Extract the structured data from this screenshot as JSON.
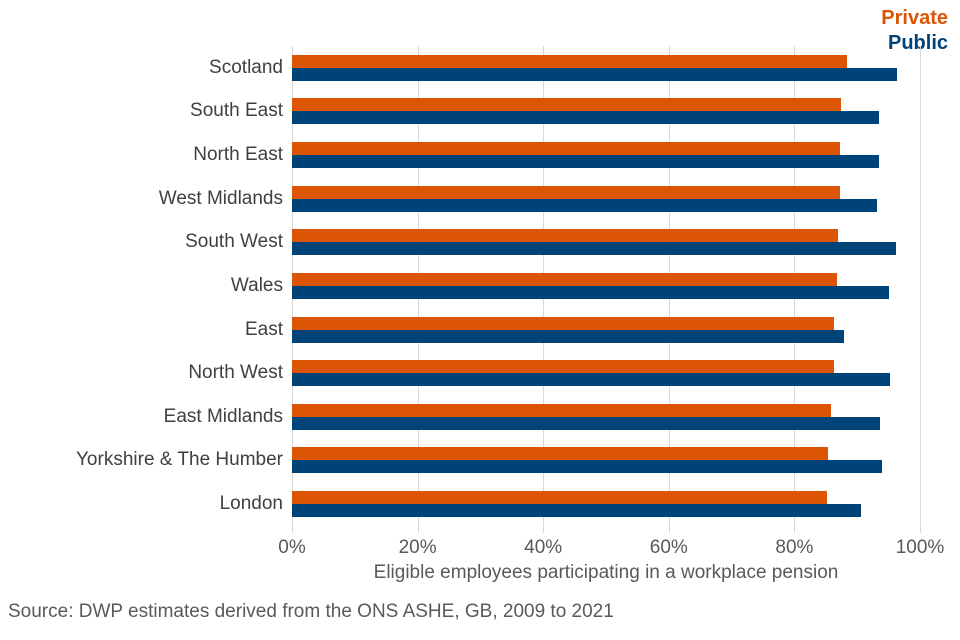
{
  "legend": {
    "private_label": "Private",
    "public_label": "Public"
  },
  "source": "Source: DWP estimates derived from the ONS ASHE, GB, 2009 to 2021",
  "colors": {
    "private": "#DC5405",
    "public": "#004379",
    "gridline": "#D9D9D9",
    "category_text": "#404040",
    "axis_text": "#595959"
  },
  "chart_data": {
    "type": "bar",
    "orientation": "horizontal",
    "title": "",
    "xlabel": "Eligible employees participating in a workplace pension",
    "ylabel": "",
    "xlim": [
      0,
      100
    ],
    "x_ticks": [
      "0%",
      "20%",
      "40%",
      "60%",
      "80%",
      "100%"
    ],
    "grid": "vertical",
    "legend_position": "top-right",
    "categories": [
      "Scotland",
      "South East",
      "North East",
      "West Midlands",
      "South West",
      "Wales",
      "East",
      "North West",
      "East Midlands",
      "Yorkshire & The Humber",
      "London"
    ],
    "series": [
      {
        "name": "Private",
        "color": "#DC5405",
        "values": [
          88.4,
          87.4,
          87.3,
          87.2,
          87.0,
          86.8,
          86.3,
          86.3,
          85.8,
          85.4,
          85.2
        ]
      },
      {
        "name": "Public",
        "color": "#004379",
        "values": [
          96.3,
          93.4,
          93.4,
          93.1,
          96.1,
          95.1,
          87.9,
          95.3,
          93.6,
          93.9,
          90.6
        ]
      }
    ]
  }
}
